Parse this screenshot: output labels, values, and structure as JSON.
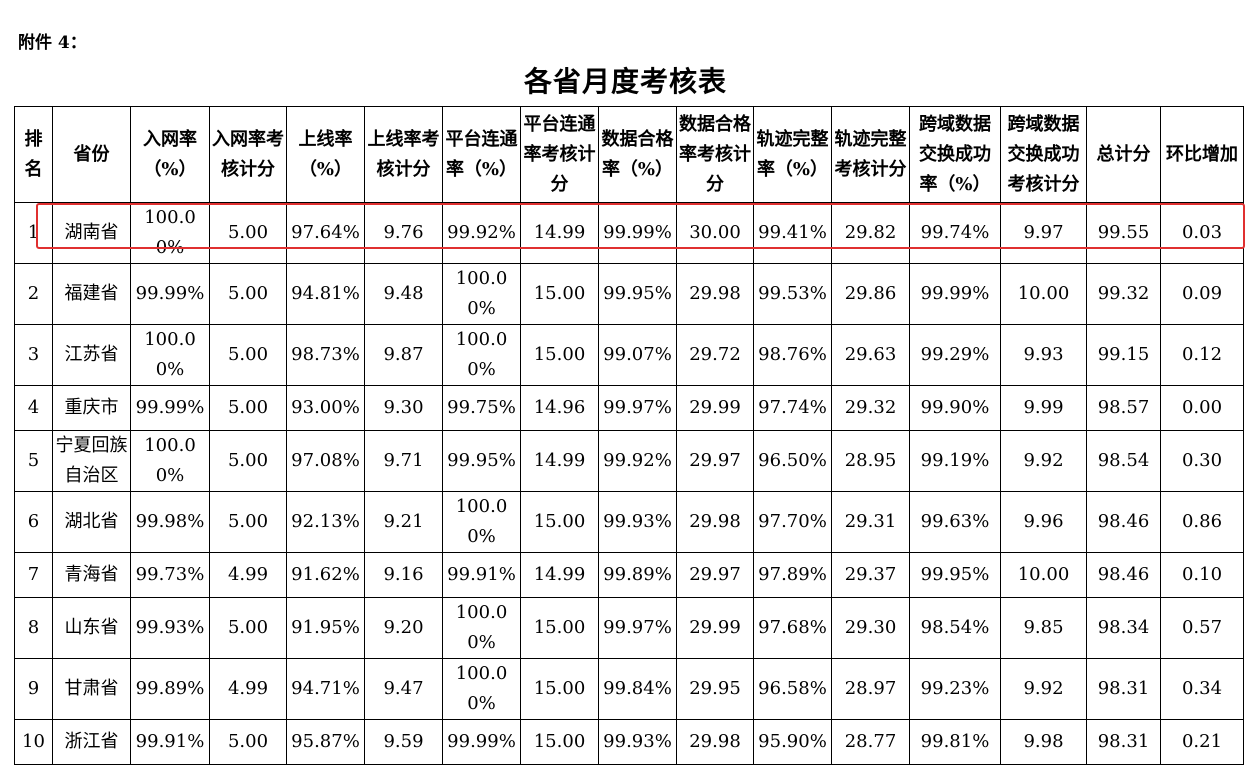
{
  "header": {
    "label": "附件 4："
  },
  "title": "各省月度考核表",
  "table": {
    "columns": [
      "排名",
      "省份",
      "入网率（%）",
      "入网率考核计分",
      "上线率（%）",
      "上线率考核计分",
      "平台连通率（%）",
      "平台连通率考核计分",
      "数据合格率（%）",
      "数据合格率考核计分",
      "轨迹完整率（%）",
      "轨迹完整考核计分",
      "跨域数据交换成功率（%）",
      "跨域数据交换成功考核计分",
      "总计分",
      "环比增加"
    ],
    "rows": [
      [
        "1",
        "湖南省",
        "100.00%",
        "5.00",
        "97.64%",
        "9.76",
        "99.92%",
        "14.99",
        "99.99%",
        "30.00",
        "99.41%",
        "29.82",
        "99.74%",
        "9.97",
        "99.55",
        "0.03"
      ],
      [
        "2",
        "福建省",
        "99.99%",
        "5.00",
        "94.81%",
        "9.48",
        "100.00%",
        "15.00",
        "99.95%",
        "29.98",
        "99.53%",
        "29.86",
        "99.99%",
        "10.00",
        "99.32",
        "0.09"
      ],
      [
        "3",
        "江苏省",
        "100.00%",
        "5.00",
        "98.73%",
        "9.87",
        "100.00%",
        "15.00",
        "99.07%",
        "29.72",
        "98.76%",
        "29.63",
        "99.29%",
        "9.93",
        "99.15",
        "0.12"
      ],
      [
        "4",
        "重庆市",
        "99.99%",
        "5.00",
        "93.00%",
        "9.30",
        "99.75%",
        "14.96",
        "99.97%",
        "29.99",
        "97.74%",
        "29.32",
        "99.90%",
        "9.99",
        "98.57",
        "0.00"
      ],
      [
        "5",
        "宁夏回族自治区",
        "100.00%",
        "5.00",
        "97.08%",
        "9.71",
        "99.95%",
        "14.99",
        "99.92%",
        "29.97",
        "96.50%",
        "28.95",
        "99.19%",
        "9.92",
        "98.54",
        "0.30"
      ],
      [
        "6",
        "湖北省",
        "99.98%",
        "5.00",
        "92.13%",
        "9.21",
        "100.00%",
        "15.00",
        "99.93%",
        "29.98",
        "97.70%",
        "29.31",
        "99.63%",
        "9.96",
        "98.46",
        "0.86"
      ],
      [
        "7",
        "青海省",
        "99.73%",
        "4.99",
        "91.62%",
        "9.16",
        "99.91%",
        "14.99",
        "99.89%",
        "29.97",
        "97.89%",
        "29.37",
        "99.95%",
        "10.00",
        "98.46",
        "0.10"
      ],
      [
        "8",
        "山东省",
        "99.93%",
        "5.00",
        "91.95%",
        "9.20",
        "100.00%",
        "15.00",
        "99.97%",
        "29.99",
        "97.68%",
        "29.30",
        "98.54%",
        "9.85",
        "98.34",
        "0.57"
      ],
      [
        "9",
        "甘肃省",
        "99.89%",
        "4.99",
        "94.71%",
        "9.47",
        "100.00%",
        "15.00",
        "99.84%",
        "29.95",
        "96.58%",
        "28.97",
        "99.23%",
        "9.92",
        "98.31",
        "0.34"
      ],
      [
        "10",
        "浙江省",
        "99.91%",
        "5.00",
        "95.87%",
        "9.59",
        "99.99%",
        "15.00",
        "99.93%",
        "29.98",
        "95.90%",
        "28.77",
        "99.81%",
        "9.98",
        "98.31",
        "0.21"
      ]
    ]
  }
}
